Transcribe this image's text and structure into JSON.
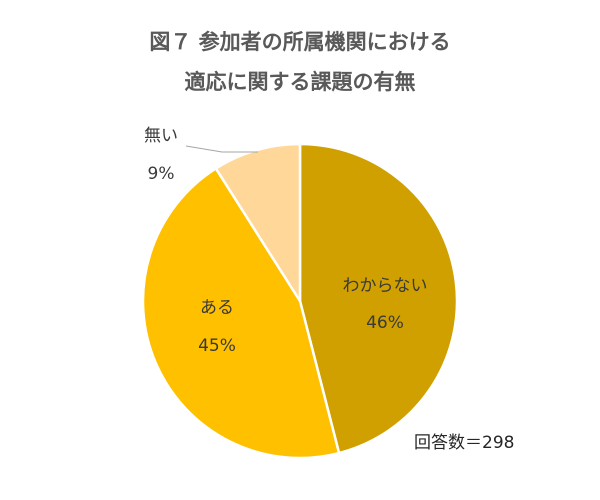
{
  "chart_data": {
    "type": "pie",
    "title": [
      "図７ 参加者の所属機関における",
      "適応に関する課題の有無"
    ],
    "slices": [
      {
        "label": "わからない",
        "value": 46,
        "value_label": "46%",
        "color": "#D0A000"
      },
      {
        "label": "ある",
        "value": 45,
        "value_label": "45%",
        "color": "#FFC000"
      },
      {
        "label": "無い",
        "value": 9,
        "value_label": "9%",
        "color": "#FFD899"
      }
    ],
    "start": "12 o'clock",
    "direction": "clockwise",
    "note": "回答数＝298"
  }
}
